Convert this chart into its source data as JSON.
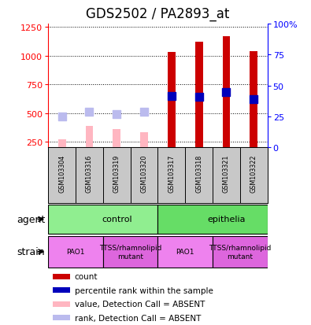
{
  "title": "GDS2502 / PA2893_at",
  "samples": [
    "GSM103304",
    "GSM103316",
    "GSM103319",
    "GSM103320",
    "GSM103317",
    "GSM103318",
    "GSM103321",
    "GSM103322"
  ],
  "count_values": [
    270,
    390,
    360,
    330,
    1030,
    1120,
    1170,
    1040
  ],
  "rank_values": [
    470,
    510,
    490,
    510,
    650,
    645,
    680,
    620
  ],
  "detection_absent": [
    true,
    true,
    true,
    true,
    false,
    false,
    false,
    false
  ],
  "ylim_left": [
    200,
    1280
  ],
  "yticks_left": [
    250,
    500,
    750,
    1000,
    1250
  ],
  "yticks_right": [
    0,
    25,
    50,
    75,
    100
  ],
  "yticklabels_right": [
    "0",
    "25",
    "50",
    "75",
    "100%"
  ],
  "agent_groups": [
    {
      "label": "control",
      "start": 0,
      "end": 4,
      "color": "#90EE90"
    },
    {
      "label": "epithelia",
      "start": 4,
      "end": 8,
      "color": "#66DD66"
    }
  ],
  "strain_groups": [
    {
      "label": "PAO1",
      "start": 0,
      "end": 2,
      "color": "#EE82EE"
    },
    {
      "label": "TTSS/rhamnolipid\nmutant",
      "start": 2,
      "end": 4,
      "color": "#DD66DD"
    },
    {
      "label": "PAO1",
      "start": 4,
      "end": 6,
      "color": "#EE82EE"
    },
    {
      "label": "TTSS/rhamnolipid\nmutant",
      "start": 6,
      "end": 8,
      "color": "#DD66DD"
    }
  ],
  "count_color_present": "#CC0000",
  "count_color_absent": "#FFB6C1",
  "rank_color_present": "#0000BB",
  "rank_color_absent": "#BBBBEE",
  "bar_width": 0.28,
  "rank_marker_size": 55,
  "legend_items": [
    {
      "color": "#CC0000",
      "label": "count",
      "marker": "s"
    },
    {
      "color": "#0000BB",
      "label": "percentile rank within the sample",
      "marker": "s"
    },
    {
      "color": "#FFB6C1",
      "label": "value, Detection Call = ABSENT",
      "marker": "s"
    },
    {
      "color": "#BBBBEE",
      "label": "rank, Detection Call = ABSENT",
      "marker": "s"
    }
  ],
  "agent_label": "agent",
  "strain_label": "strain",
  "background_color": "#FFFFFF",
  "sample_box_color": "#C8C8C8",
  "title_fontsize": 12,
  "axis_fontsize": 8,
  "label_fontsize": 9
}
